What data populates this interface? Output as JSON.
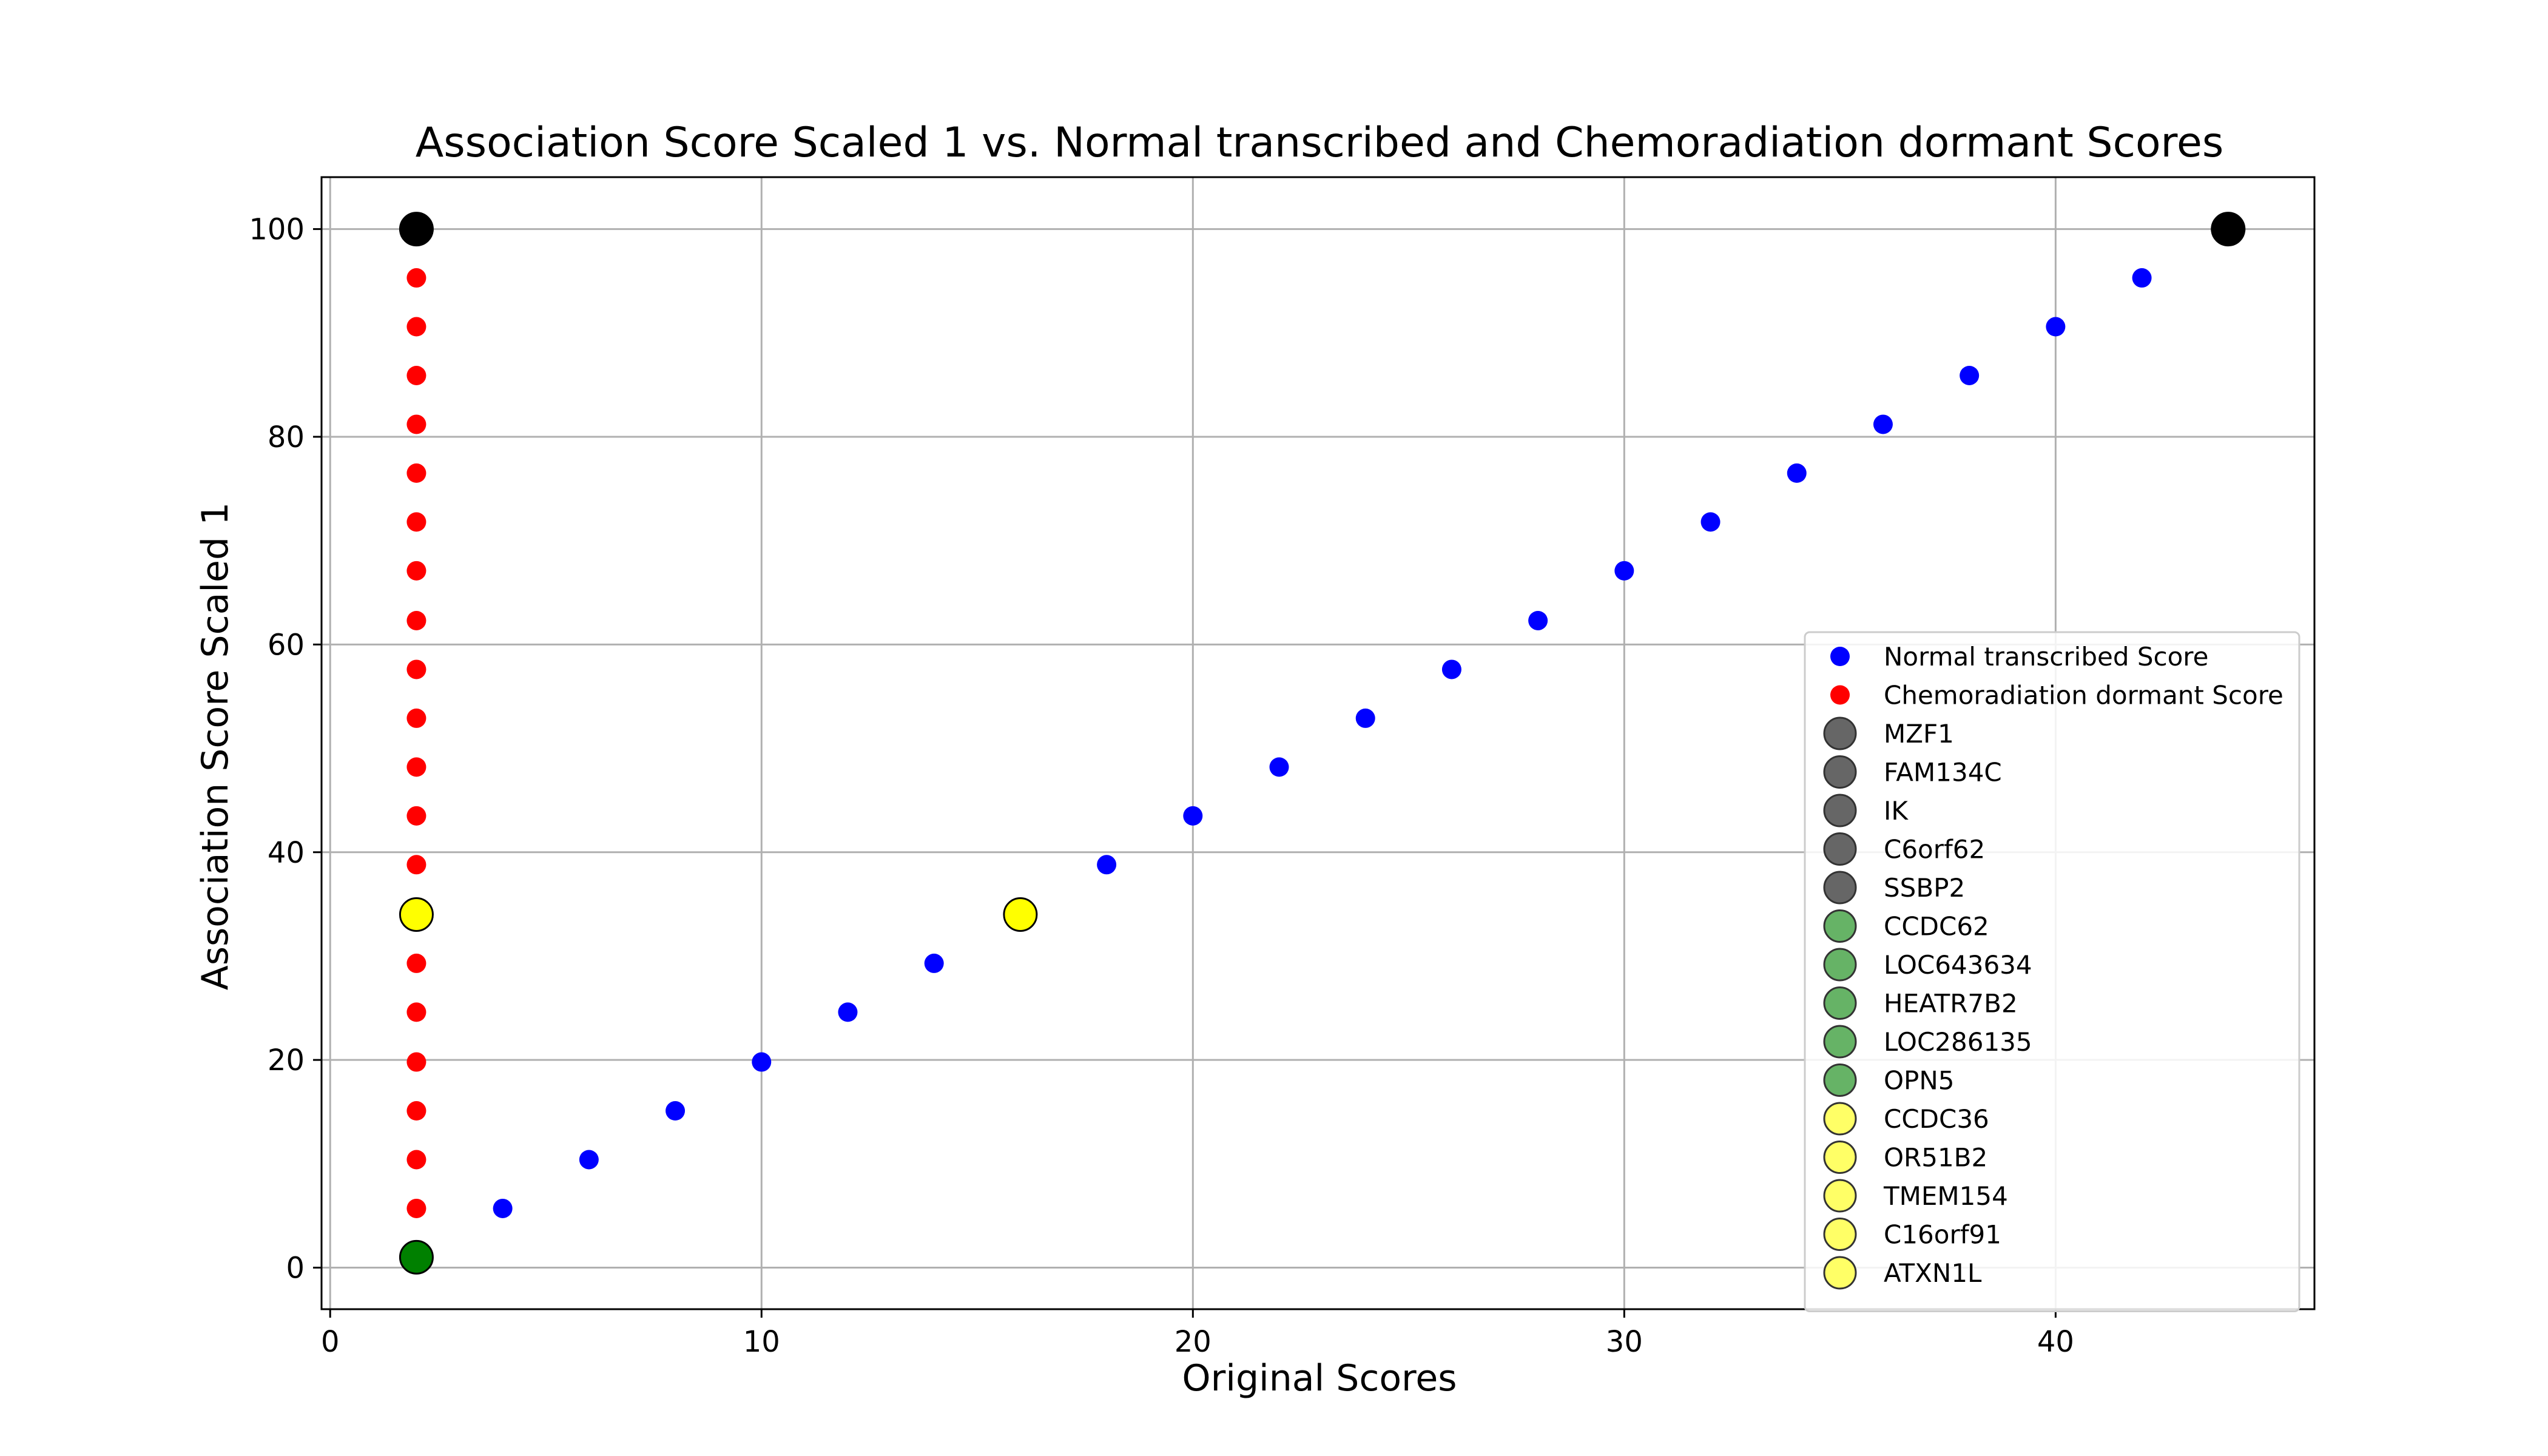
{
  "chart_data": {
    "type": "scatter",
    "title": "Association Score Scaled 1 vs. Normal transcribed and Chemoradiation dormant Scores",
    "xlabel": "Original Scores",
    "ylabel": "Association Score Scaled 1",
    "xlim": [
      -0.2,
      46
    ],
    "ylim": [
      -4,
      105
    ],
    "x_ticks": [
      0,
      10,
      20,
      30,
      40
    ],
    "y_ticks": [
      0,
      20,
      40,
      60,
      80,
      100
    ],
    "grid": true,
    "legend_position": "lower-right",
    "series": [
      {
        "name": "Normal transcribed Score",
        "color": "#0000ff",
        "x": [
          4,
          6,
          8,
          10,
          12,
          14,
          18,
          20,
          22,
          24,
          26,
          28,
          30,
          32,
          34,
          36,
          38,
          40,
          42
        ],
        "y": [
          5.7,
          10.4,
          15.1,
          19.8,
          24.6,
          29.3,
          38.8,
          43.5,
          48.2,
          52.9,
          57.6,
          62.3,
          67.1,
          71.8,
          76.5,
          81.2,
          85.9,
          90.6,
          95.3
        ]
      },
      {
        "name": "Chemoradiation dormant Score",
        "color": "#ff0000",
        "x": [
          2,
          2,
          2,
          2,
          2,
          2,
          2,
          2,
          2,
          2,
          2,
          2,
          2,
          2,
          2,
          2,
          2,
          2,
          2
        ],
        "y": [
          5.7,
          10.4,
          15.1,
          19.8,
          24.6,
          29.3,
          38.8,
          43.5,
          48.2,
          52.9,
          57.6,
          62.3,
          67.1,
          71.8,
          76.5,
          81.2,
          85.9,
          90.6,
          95.3
        ]
      }
    ],
    "highlighted_points": [
      {
        "x": 2,
        "y": 100,
        "color": "#000000"
      },
      {
        "x": 44,
        "y": 100,
        "color": "#000000"
      },
      {
        "x": 2,
        "y": 34,
        "color": "#ffff00"
      },
      {
        "x": 16,
        "y": 34,
        "color": "#ffff00"
      },
      {
        "x": 2,
        "y": 1,
        "color": "#008000"
      }
    ],
    "legend_entries": [
      {
        "label": "Normal transcribed Score",
        "color": "#0000ff",
        "marker": "small"
      },
      {
        "label": "Chemoradiation dormant Score",
        "color": "#ff0000",
        "marker": "small"
      },
      {
        "label": "MZF1",
        "color": "#666666",
        "marker": "large"
      },
      {
        "label": "FAM134C",
        "color": "#666666",
        "marker": "large"
      },
      {
        "label": "IK",
        "color": "#666666",
        "marker": "large"
      },
      {
        "label": "C6orf62",
        "color": "#666666",
        "marker": "large"
      },
      {
        "label": "SSBP2",
        "color": "#666666",
        "marker": "large"
      },
      {
        "label": "CCDC62",
        "color": "#66b366",
        "marker": "large"
      },
      {
        "label": "LOC643634",
        "color": "#66b366",
        "marker": "large"
      },
      {
        "label": "HEATR7B2",
        "color": "#66b366",
        "marker": "large"
      },
      {
        "label": "LOC286135",
        "color": "#66b366",
        "marker": "large"
      },
      {
        "label": "OPN5",
        "color": "#66b366",
        "marker": "large"
      },
      {
        "label": "CCDC36",
        "color": "#ffff66",
        "marker": "large"
      },
      {
        "label": "OR51B2",
        "color": "#ffff66",
        "marker": "large"
      },
      {
        "label": "TMEM154",
        "color": "#ffff66",
        "marker": "large"
      },
      {
        "label": "C16orf91",
        "color": "#ffff66",
        "marker": "large"
      },
      {
        "label": "ATXN1L",
        "color": "#ffff66",
        "marker": "large"
      }
    ]
  }
}
